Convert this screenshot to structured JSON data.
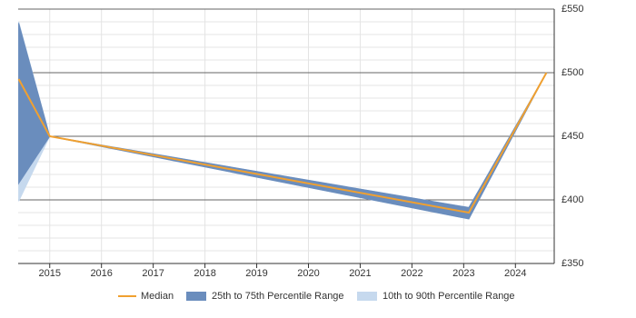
{
  "chart_data": {
    "type": "range_line",
    "x": [
      2014.4,
      2015,
      2023.1,
      2024.6
    ],
    "xlim": [
      2014.39,
      2024.75
    ],
    "xticks": [
      2015,
      2016,
      2017,
      2018,
      2019,
      2020,
      2021,
      2022,
      2023,
      2024
    ],
    "ylim": [
      350,
      550
    ],
    "yticks": [
      {
        "value": 350,
        "label": "£350"
      },
      {
        "value": 400,
        "label": "£400"
      },
      {
        "value": 450,
        "label": "£450"
      },
      {
        "value": 500,
        "label": "£500"
      },
      {
        "value": 550,
        "label": "£550"
      }
    ],
    "minor_yticks": [
      360,
      370,
      380,
      390,
      410,
      420,
      430,
      440,
      460,
      470,
      480,
      490,
      510,
      520,
      530,
      540
    ],
    "grid": true,
    "legend": "bottom",
    "series": [
      {
        "name": "10th to 90th Percentile Range",
        "color": "#c6d9ee",
        "low": [
          399,
          450,
          385,
          500
        ],
        "high": [
          540,
          450,
          394,
          500
        ]
      },
      {
        "name": "25th to 75th Percentile Range",
        "color": "#6a8dbd",
        "low": [
          413,
          450,
          385,
          500
        ],
        "high": [
          539,
          450,
          394,
          500
        ]
      },
      {
        "name": "Median",
        "color": "#f0a030",
        "values": [
          495,
          450,
          390,
          500
        ]
      }
    ]
  }
}
